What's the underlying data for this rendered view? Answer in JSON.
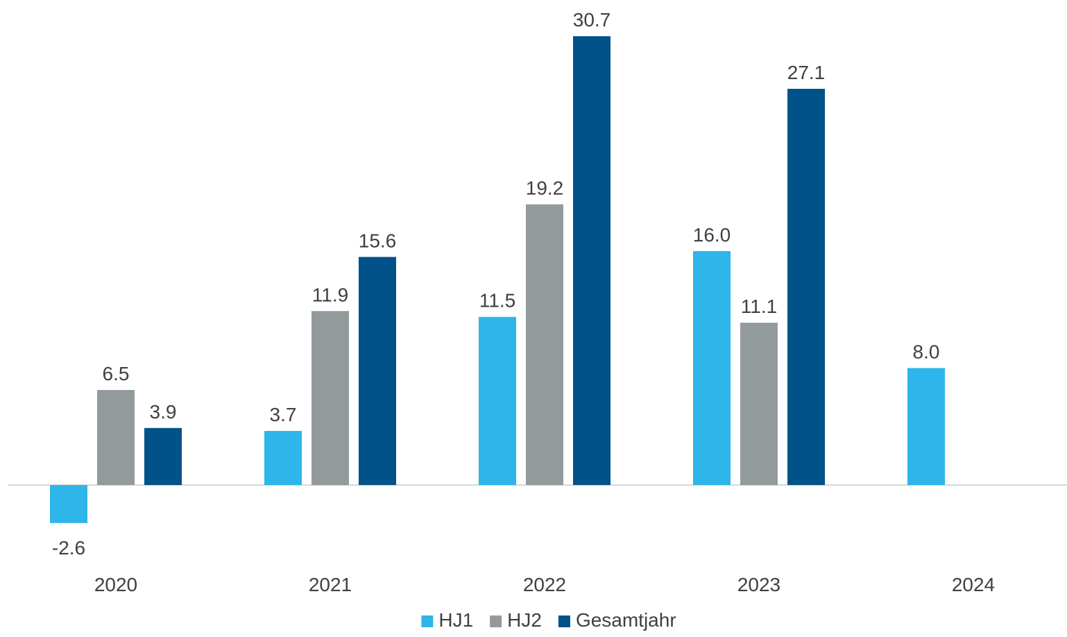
{
  "chart_data": {
    "type": "bar",
    "categories": [
      "2020",
      "2021",
      "2022",
      "2023",
      "2024"
    ],
    "series": [
      {
        "name": "HJ1",
        "color": "#2EB5E9",
        "values": [
          -2.6,
          3.7,
          11.5,
          16.0,
          8.0
        ],
        "labels": [
          "-2.6",
          "3.7",
          "11.5",
          "16.0",
          "8.0"
        ]
      },
      {
        "name": "HJ2",
        "color": "#939A9C",
        "values": [
          6.5,
          11.9,
          19.2,
          11.1,
          null
        ],
        "labels": [
          "6.5",
          "11.9",
          "19.2",
          "11.1",
          ""
        ]
      },
      {
        "name": "Gesamtjahr",
        "color": "#02528A",
        "values": [
          3.9,
          15.6,
          30.7,
          27.1,
          null
        ],
        "labels": [
          "3.9",
          "15.6",
          "30.7",
          "27.1",
          ""
        ]
      }
    ],
    "title": "",
    "xlabel": "",
    "ylabel": "",
    "ylim": [
      -5,
      33
    ],
    "grid": false,
    "legend_position": "bottom",
    "baseline_color": "#D9D9D9"
  }
}
